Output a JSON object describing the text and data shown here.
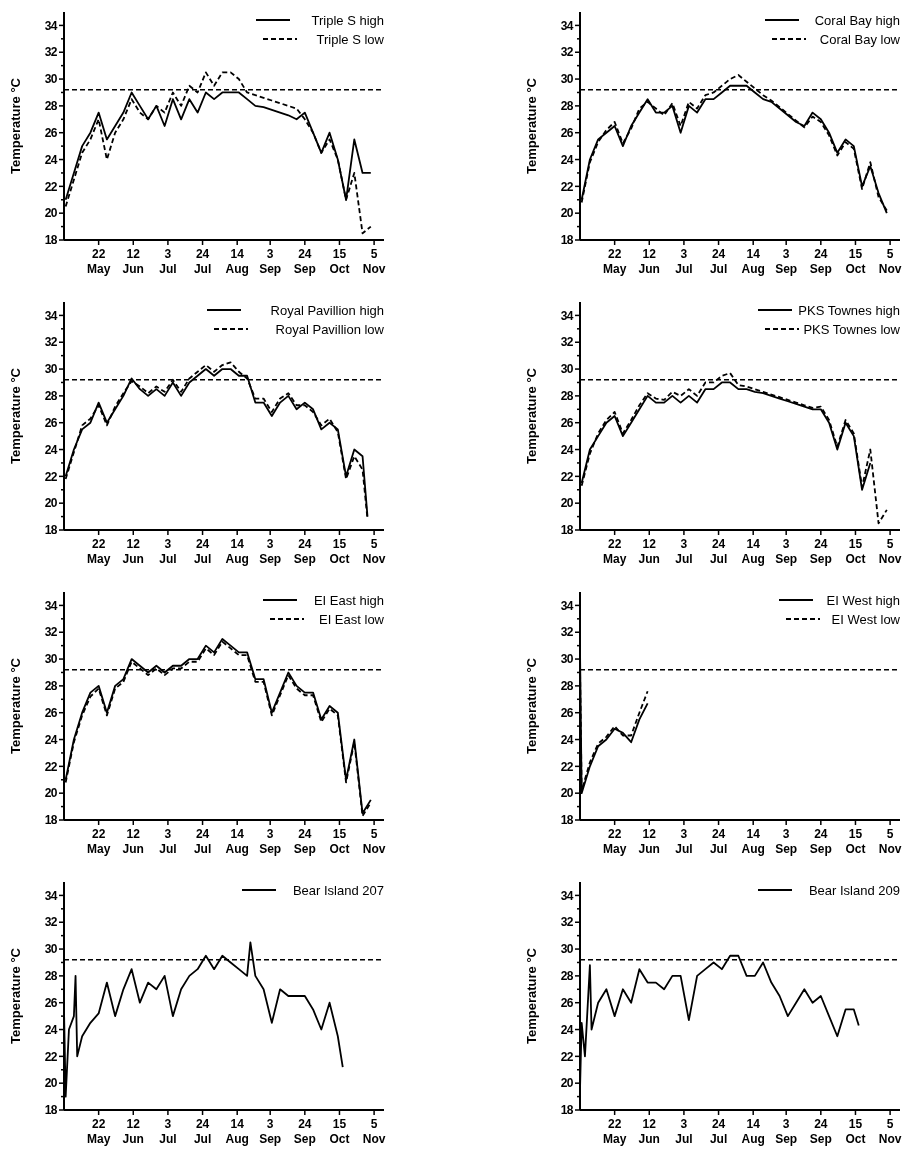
{
  "chart_data": [
    {
      "type": "line",
      "ylabel": "Temperature °C",
      "legend": "top right",
      "xlim": [
        "--05-01",
        "--11-11"
      ],
      "ylim": [
        18,
        35
      ],
      "xticks": [
        {
          "value": "--05-22",
          "label": "22 May"
        },
        {
          "value": "--06-12",
          "label": "12 Jun"
        },
        {
          "value": "--07-03",
          "label": "3 Jul"
        },
        {
          "value": "--07-24",
          "label": "24 Jul"
        },
        {
          "value": "--08-14",
          "label": "14 Aug"
        },
        {
          "value": "--09-03",
          "label": "3 Sep"
        },
        {
          "value": "--09-24",
          "label": "24 Sep"
        },
        {
          "value": "--10-15",
          "label": "15 Oct"
        },
        {
          "value": "--11-05",
          "label": "5 Nov"
        }
      ],
      "yticks": [
        18,
        {
          "value": 19,
          "label": null
        },
        20,
        {
          "value": 21,
          "label": null
        },
        22,
        {
          "value": 23,
          "label": null
        },
        24,
        {
          "value": 25,
          "label": null
        },
        26,
        {
          "value": 27,
          "label": null
        },
        28,
        {
          "value": 29,
          "label": null
        },
        30,
        {
          "value": 31,
          "label": null
        },
        32,
        {
          "value": 33,
          "label": null
        },
        34
      ],
      "ref_lines": [
        {
          "axis": "y",
          "value": 29.2,
          "line_style": "dashed"
        }
      ],
      "x": [
        "--05-02",
        "--05-07",
        "--05-12",
        "--05-17",
        "--05-22",
        "--05-27",
        "--06-01",
        "--06-06",
        "--06-11",
        "--06-16",
        "--06-21",
        "--06-26",
        "--07-01",
        "--07-06",
        "--07-11",
        "--07-16",
        "--07-21",
        "--07-26",
        "--07-31",
        "--08-05",
        "--08-10",
        "--08-15",
        "--08-20",
        "--08-25",
        "--08-30",
        "--09-04",
        "--09-09",
        "--09-14",
        "--09-19",
        "--09-24",
        "--09-29",
        "--10-04",
        "--10-09",
        "--10-14",
        "--10-19",
        "--10-24",
        "--10-29",
        "--11-03"
      ],
      "series": [
        {
          "name": "Triple S high",
          "color": "#000000",
          "line_style": "solid",
          "values": [
            21,
            23,
            25,
            26,
            27.5,
            25.5,
            26.5,
            27.5,
            29,
            28,
            27,
            28,
            26.5,
            28.5,
            27,
            28.5,
            27.5,
            29,
            28.5,
            29,
            29,
            29,
            28.5,
            28,
            27.9,
            27.7,
            27.5,
            27.3,
            27,
            27.5,
            26,
            24.5,
            26,
            24,
            21,
            25.5,
            23,
            23
          ]
        },
        {
          "name": "Triple S low",
          "color": "#000000",
          "line_style": "dashed",
          "values": [
            20.5,
            22.5,
            24.5,
            25.5,
            27,
            24,
            26,
            27,
            28.5,
            27.5,
            27,
            28,
            27.5,
            29,
            28,
            29.5,
            29,
            30.5,
            29.5,
            30.5,
            30.5,
            30,
            29,
            28.8,
            28.6,
            28.4,
            28.2,
            28,
            27.8,
            27,
            26,
            24.5,
            25.5,
            24,
            21,
            23,
            18.5,
            19
          ]
        }
      ]
    },
    {
      "type": "line",
      "ylabel": "Temperature °C",
      "legend": "top right",
      "xlim": [
        "--05-01",
        "--11-11"
      ],
      "ylim": [
        18,
        35
      ],
      "xticks": [
        {
          "value": "--05-22",
          "label": "22 May"
        },
        {
          "value": "--06-12",
          "label": "12 Jun"
        },
        {
          "value": "--07-03",
          "label": "3 Jul"
        },
        {
          "value": "--07-24",
          "label": "24 Jul"
        },
        {
          "value": "--08-14",
          "label": "14 Aug"
        },
        {
          "value": "--09-03",
          "label": "3 Sep"
        },
        {
          "value": "--09-24",
          "label": "24 Sep"
        },
        {
          "value": "--10-15",
          "label": "15 Oct"
        },
        {
          "value": "--11-05",
          "label": "5 Nov"
        }
      ],
      "yticks": [
        18,
        {
          "value": 19,
          "label": null
        },
        20,
        {
          "value": 21,
          "label": null
        },
        22,
        {
          "value": 23,
          "label": null
        },
        24,
        {
          "value": 25,
          "label": null
        },
        26,
        {
          "value": 27,
          "label": null
        },
        28,
        {
          "value": 29,
          "label": null
        },
        30,
        {
          "value": 31,
          "label": null
        },
        32,
        {
          "value": 33,
          "label": null
        },
        34
      ],
      "ref_lines": [
        {
          "axis": "y",
          "value": 29.2,
          "line_style": "dashed"
        }
      ],
      "x": [
        "--05-02",
        "--05-07",
        "--05-12",
        "--05-17",
        "--05-22",
        "--05-27",
        "--06-01",
        "--06-06",
        "--06-11",
        "--06-16",
        "--06-21",
        "--06-26",
        "--07-01",
        "--07-06",
        "--07-11",
        "--07-16",
        "--07-21",
        "--07-26",
        "--07-31",
        "--08-05",
        "--08-10",
        "--08-15",
        "--08-20",
        "--08-25",
        "--08-30",
        "--09-04",
        "--09-09",
        "--09-14",
        "--09-19",
        "--09-24",
        "--09-29",
        "--10-04",
        "--10-09",
        "--10-14",
        "--10-19",
        "--10-24",
        "--10-29",
        "--11-03"
      ],
      "series": [
        {
          "name": "Coral Bay high",
          "color": "#000000",
          "line_style": "solid",
          "values": [
            21,
            24,
            25.5,
            26,
            26.5,
            25,
            26.5,
            27.5,
            28.5,
            27.5,
            27.5,
            28,
            26,
            28,
            27.5,
            28.5,
            28.5,
            29,
            29.5,
            29.5,
            29.5,
            29,
            28.5,
            28.3,
            27.8,
            27.3,
            26.8,
            26.5,
            27.5,
            27,
            26,
            24.5,
            25.5,
            25,
            22,
            23.5,
            21.5,
            20
          ]
        },
        {
          "name": "Coral Bay low",
          "color": "#000000",
          "line_style": "dashed",
          "values": [
            20.8,
            23.8,
            25.3,
            26.2,
            26.8,
            25.2,
            26.3,
            27.8,
            28.3,
            27.8,
            27.3,
            28.2,
            26.5,
            28.3,
            27.8,
            28.8,
            29,
            29.5,
            30,
            30.3,
            29.8,
            29.3,
            28.8,
            28.4,
            27.9,
            27.4,
            26.9,
            26.4,
            27.2,
            26.8,
            25.8,
            24.3,
            25.3,
            24.8,
            21.8,
            23.8,
            21.2,
            20.2
          ]
        }
      ]
    },
    {
      "type": "line",
      "ylabel": "Temperature °C",
      "legend": "top right",
      "xlim": [
        "--05-01",
        "--11-11"
      ],
      "ylim": [
        18,
        35
      ],
      "xticks": [
        {
          "value": "--05-22",
          "label": "22 May"
        },
        {
          "value": "--06-12",
          "label": "12 Jun"
        },
        {
          "value": "--07-03",
          "label": "3 Jul"
        },
        {
          "value": "--07-24",
          "label": "24 Jul"
        },
        {
          "value": "--08-14",
          "label": "14 Aug"
        },
        {
          "value": "--09-03",
          "label": "3 Sep"
        },
        {
          "value": "--09-24",
          "label": "24 Sep"
        },
        {
          "value": "--10-15",
          "label": "15 Oct"
        },
        {
          "value": "--11-05",
          "label": "5 Nov"
        }
      ],
      "yticks": [
        18,
        {
          "value": 19,
          "label": null
        },
        20,
        {
          "value": 21,
          "label": null
        },
        22,
        {
          "value": 23,
          "label": null
        },
        24,
        {
          "value": 25,
          "label": null
        },
        26,
        {
          "value": 27,
          "label": null
        },
        28,
        {
          "value": 29,
          "label": null
        },
        30,
        {
          "value": 31,
          "label": null
        },
        32,
        {
          "value": 33,
          "label": null
        },
        34
      ],
      "ref_lines": [
        {
          "axis": "y",
          "value": 29.2,
          "line_style": "dashed"
        }
      ],
      "x": [
        "--05-02",
        "--05-07",
        "--05-12",
        "--05-17",
        "--05-22",
        "--05-27",
        "--06-01",
        "--06-06",
        "--06-11",
        "--06-16",
        "--06-21",
        "--06-26",
        "--07-01",
        "--07-06",
        "--07-11",
        "--07-16",
        "--07-21",
        "--07-26",
        "--07-31",
        "--08-05",
        "--08-10",
        "--08-15",
        "--08-20",
        "--08-25",
        "--08-30",
        "--09-04",
        "--09-09",
        "--09-14",
        "--09-19",
        "--09-24",
        "--09-29",
        "--10-04",
        "--10-09",
        "--10-14",
        "--10-19",
        "--10-24",
        "--10-29",
        "--11-01"
      ],
      "series": [
        {
          "name": "Royal Pavillion high",
          "color": "#000000",
          "line_style": "solid",
          "values": [
            22,
            24,
            25.5,
            26,
            27.5,
            26,
            27,
            28,
            29.3,
            28.5,
            28,
            28.5,
            28,
            29,
            28,
            29,
            29.5,
            30,
            29.5,
            30,
            30,
            29.5,
            29.5,
            27.5,
            27.5,
            26.5,
            27.5,
            28,
            27,
            27.5,
            27,
            25.5,
            26,
            25.5,
            22,
            24,
            23.5,
            19
          ]
        },
        {
          "name": "Royal Pavillion low",
          "color": "#000000",
          "line_style": "dashed",
          "values": [
            21.8,
            23.8,
            25.8,
            26.3,
            27.3,
            25.8,
            27.2,
            28.2,
            29.1,
            28.7,
            28.2,
            28.7,
            28.3,
            29.2,
            28.3,
            29.3,
            29.8,
            30.3,
            29.8,
            30.3,
            30.5,
            29.8,
            29.3,
            27.8,
            27.8,
            26.8,
            27.8,
            28.2,
            27.3,
            27.3,
            26.8,
            25.8,
            26.3,
            25.3,
            21.8,
            23.5,
            22.5,
            18.8
          ]
        }
      ]
    },
    {
      "type": "line",
      "ylabel": "Temperature °C",
      "legend": "top right",
      "xlim": [
        "--05-01",
        "--11-11"
      ],
      "ylim": [
        18,
        35
      ],
      "xticks": [
        {
          "value": "--05-22",
          "label": "22 May"
        },
        {
          "value": "--06-12",
          "label": "12 Jun"
        },
        {
          "value": "--07-03",
          "label": "3 Jul"
        },
        {
          "value": "--07-24",
          "label": "24 Jul"
        },
        {
          "value": "--08-14",
          "label": "14 Aug"
        },
        {
          "value": "--09-03",
          "label": "3 Sep"
        },
        {
          "value": "--09-24",
          "label": "24 Sep"
        },
        {
          "value": "--10-15",
          "label": "15 Oct"
        },
        {
          "value": "--11-05",
          "label": "5 Nov"
        }
      ],
      "yticks": [
        18,
        {
          "value": 19,
          "label": null
        },
        20,
        {
          "value": 21,
          "label": null
        },
        22,
        {
          "value": 23,
          "label": null
        },
        24,
        {
          "value": 25,
          "label": null
        },
        26,
        {
          "value": 27,
          "label": null
        },
        28,
        {
          "value": 29,
          "label": null
        },
        30,
        {
          "value": 31,
          "label": null
        },
        32,
        {
          "value": 33,
          "label": null
        },
        34
      ],
      "ref_lines": [
        {
          "axis": "y",
          "value": 29.2,
          "line_style": "dashed"
        }
      ],
      "x": [
        "--05-02",
        "--05-07",
        "--05-12",
        "--05-17",
        "--05-22",
        "--05-27",
        "--06-01",
        "--06-06",
        "--06-11",
        "--06-16",
        "--06-21",
        "--06-26",
        "--07-01",
        "--07-06",
        "--07-11",
        "--07-16",
        "--07-21",
        "--07-26",
        "--07-31",
        "--08-05",
        "--08-10",
        "--08-15",
        "--08-20",
        "--08-25",
        "--08-30",
        "--09-04",
        "--09-09",
        "--09-14",
        "--09-19",
        "--09-24",
        "--09-29",
        "--10-04",
        "--10-09",
        "--10-14",
        "--10-19",
        "--10-24",
        "--10-29",
        "--11-03"
      ],
      "series": [
        {
          "name": "PKS Townes high",
          "color": "#000000",
          "line_style": "solid",
          "values": [
            21.5,
            24,
            25,
            26,
            26.5,
            25,
            26,
            27,
            28,
            27.5,
            27.5,
            28,
            27.5,
            28,
            27.5,
            28.5,
            28.5,
            29,
            29,
            28.5,
            28.5,
            28.3,
            28.2,
            28,
            27.8,
            27.6,
            27.4,
            27.2,
            27,
            27,
            26,
            24,
            26,
            25,
            21,
            23,
            null,
            null
          ]
        },
        {
          "name": "PKS Townes low",
          "color": "#000000",
          "line_style": "dashed",
          "values": [
            21.3,
            23.7,
            25.2,
            26.2,
            26.8,
            25.2,
            26.2,
            27.3,
            28.2,
            27.8,
            27.7,
            28.3,
            28,
            28.5,
            28,
            29,
            29,
            29.5,
            29.7,
            28.8,
            28.7,
            28.5,
            28.3,
            28.1,
            27.9,
            27.7,
            27.5,
            27.3,
            27.1,
            27.2,
            26.2,
            24.2,
            26.2,
            25.2,
            21.2,
            24,
            18.5,
            19.5
          ]
        }
      ]
    },
    {
      "type": "line",
      "ylabel": "Temperature °C",
      "legend": "top right",
      "xlim": [
        "--05-01",
        "--11-11"
      ],
      "ylim": [
        18,
        35
      ],
      "xticks": [
        {
          "value": "--05-22",
          "label": "22 May"
        },
        {
          "value": "--06-12",
          "label": "12 Jun"
        },
        {
          "value": "--07-03",
          "label": "3 Jul"
        },
        {
          "value": "--07-24",
          "label": "24 Jul"
        },
        {
          "value": "--08-14",
          "label": "14 Aug"
        },
        {
          "value": "--09-03",
          "label": "3 Sep"
        },
        {
          "value": "--09-24",
          "label": "24 Sep"
        },
        {
          "value": "--10-15",
          "label": "15 Oct"
        },
        {
          "value": "--11-05",
          "label": "5 Nov"
        }
      ],
      "yticks": [
        18,
        {
          "value": 19,
          "label": null
        },
        20,
        {
          "value": 21,
          "label": null
        },
        22,
        {
          "value": 23,
          "label": null
        },
        24,
        {
          "value": 25,
          "label": null
        },
        26,
        {
          "value": 27,
          "label": null
        },
        28,
        {
          "value": 29,
          "label": null
        },
        30,
        {
          "value": 31,
          "label": null
        },
        32,
        {
          "value": 33,
          "label": null
        },
        34
      ],
      "ref_lines": [
        {
          "axis": "y",
          "value": 29.2,
          "line_style": "dashed"
        }
      ],
      "x": [
        "--05-02",
        "--05-07",
        "--05-12",
        "--05-17",
        "--05-22",
        "--05-27",
        "--06-01",
        "--06-06",
        "--06-11",
        "--06-16",
        "--06-21",
        "--06-26",
        "--07-01",
        "--07-06",
        "--07-11",
        "--07-16",
        "--07-21",
        "--07-26",
        "--07-31",
        "--08-05",
        "--08-10",
        "--08-15",
        "--08-20",
        "--08-25",
        "--08-30",
        "--09-04",
        "--09-09",
        "--09-14",
        "--09-19",
        "--09-24",
        "--09-29",
        "--10-04",
        "--10-09",
        "--10-14",
        "--10-19",
        "--10-24",
        "--10-29",
        "--11-03"
      ],
      "series": [
        {
          "name": "EI East high",
          "color": "#000000",
          "line_style": "solid",
          "values": [
            21,
            24,
            26,
            27.5,
            28,
            26,
            28,
            28.5,
            30,
            29.5,
            29,
            29.5,
            29,
            29.5,
            29.5,
            30,
            30,
            31,
            30.5,
            31.5,
            31,
            30.5,
            30.5,
            28.5,
            28.5,
            26,
            27.5,
            29,
            28,
            27.5,
            27.5,
            25.5,
            26.5,
            26,
            21,
            24,
            18.5,
            19.5
          ]
        },
        {
          "name": "EI East low",
          "color": "#000000",
          "line_style": "dashed",
          "values": [
            20.8,
            23.8,
            25.8,
            27.2,
            27.8,
            25.8,
            27.8,
            28.3,
            29.8,
            29.3,
            28.8,
            29.3,
            28.8,
            29.3,
            29.3,
            29.8,
            29.8,
            30.8,
            30.3,
            31.3,
            30.8,
            30.3,
            30.3,
            28.3,
            28.3,
            25.8,
            27.3,
            28.8,
            27.8,
            27.3,
            27.3,
            25.3,
            26.3,
            25.8,
            20.8,
            23.8,
            18.3,
            19.3
          ]
        }
      ]
    },
    {
      "type": "line",
      "ylabel": "Temperature °C",
      "legend": "top right",
      "xlim": [
        "--05-01",
        "--11-11"
      ],
      "ylim": [
        18,
        35
      ],
      "xticks": [
        {
          "value": "--05-22",
          "label": "22 May"
        },
        {
          "value": "--06-12",
          "label": "12 Jun"
        },
        {
          "value": "--07-03",
          "label": "3 Jul"
        },
        {
          "value": "--07-24",
          "label": "24 Jul"
        },
        {
          "value": "--08-14",
          "label": "14 Aug"
        },
        {
          "value": "--09-03",
          "label": "3 Sep"
        },
        {
          "value": "--09-24",
          "label": "24 Sep"
        },
        {
          "value": "--10-15",
          "label": "15 Oct"
        },
        {
          "value": "--11-05",
          "label": "5 Nov"
        }
      ],
      "yticks": [
        18,
        {
          "value": 19,
          "label": null
        },
        20,
        {
          "value": 21,
          "label": null
        },
        22,
        {
          "value": 23,
          "label": null
        },
        24,
        {
          "value": 25,
          "label": null
        },
        26,
        {
          "value": 27,
          "label": null
        },
        28,
        {
          "value": 29,
          "label": null
        },
        30,
        {
          "value": 31,
          "label": null
        },
        32,
        {
          "value": 33,
          "label": null
        },
        34
      ],
      "ref_lines": [
        {
          "axis": "y",
          "value": 29.2,
          "line_style": "dashed"
        }
      ],
      "x": [
        "--05-01",
        "--05-02",
        "--05-07",
        "--05-12",
        "--05-17",
        "--05-22",
        "--05-27",
        "--06-01",
        "--06-06",
        "--06-11"
      ],
      "series": [
        {
          "name": "EI West high",
          "color": "#000000",
          "line_style": "solid",
          "values": [
            30.8,
            20,
            22,
            23.5,
            24,
            24.8,
            24.5,
            23.8,
            25.5,
            26.7
          ]
        },
        {
          "name": "EI West low",
          "color": "#000000",
          "line_style": "dashed",
          "values": [
            29.5,
            20.2,
            22.3,
            23.7,
            24.2,
            25,
            24.3,
            24.3,
            26,
            27.6
          ]
        }
      ]
    },
    {
      "type": "line",
      "ylabel": "Temperature °C",
      "legend": "top right",
      "xlim": [
        "--05-01",
        "--11-11"
      ],
      "ylim": [
        18,
        35
      ],
      "xticks": [
        {
          "value": "--05-22",
          "label": "22 May"
        },
        {
          "value": "--06-12",
          "label": "12 Jun"
        },
        {
          "value": "--07-03",
          "label": "3 Jul"
        },
        {
          "value": "--07-24",
          "label": "24 Jul"
        },
        {
          "value": "--08-14",
          "label": "14 Aug"
        },
        {
          "value": "--09-03",
          "label": "3 Sep"
        },
        {
          "value": "--09-24",
          "label": "24 Sep"
        },
        {
          "value": "--10-15",
          "label": "15 Oct"
        },
        {
          "value": "--11-05",
          "label": "5 Nov"
        }
      ],
      "yticks": [
        18,
        {
          "value": 19,
          "label": null
        },
        20,
        {
          "value": 21,
          "label": null
        },
        22,
        {
          "value": 23,
          "label": null
        },
        24,
        {
          "value": 25,
          "label": null
        },
        26,
        {
          "value": 27,
          "label": null
        },
        28,
        {
          "value": 29,
          "label": null
        },
        30,
        {
          "value": 31,
          "label": null
        },
        32,
        {
          "value": 33,
          "label": null
        },
        34
      ],
      "ref_lines": [
        {
          "axis": "y",
          "value": 29.2,
          "line_style": "dashed"
        }
      ],
      "x": [
        "--05-01",
        "--05-02",
        "--05-04",
        "--05-07",
        "--05-08",
        "--05-09",
        "--05-12",
        "--05-17",
        "--05-22",
        "--05-27",
        "--06-01",
        "--06-06",
        "--06-11",
        "--06-16",
        "--06-21",
        "--06-26",
        "--07-01",
        "--07-06",
        "--07-11",
        "--07-16",
        "--07-21",
        "--07-26",
        "--07-31",
        "--08-05",
        "--08-10",
        "--08-15",
        "--08-20",
        "--08-22",
        "--08-25",
        "--08-30",
        "--09-04",
        "--09-09",
        "--09-14",
        "--09-19",
        "--09-24",
        "--09-29",
        "--10-04",
        "--10-09",
        "--10-14",
        "--10-17"
      ],
      "series": [
        {
          "name": "Bear Island 207",
          "color": "#000000",
          "line_style": "solid",
          "values": [
            25.5,
            19,
            24,
            25,
            28,
            22,
            23.5,
            24.5,
            25.2,
            27.5,
            25,
            27,
            28.5,
            26,
            27.5,
            27,
            28,
            25,
            27,
            28,
            28.5,
            29.5,
            28.5,
            29.5,
            29,
            28.5,
            28,
            30.5,
            28,
            27,
            24.5,
            27,
            26.5,
            26.5,
            26.5,
            25.5,
            24,
            26,
            23.5,
            21.2
          ]
        }
      ]
    },
    {
      "type": "line",
      "ylabel": "Temperature °C",
      "legend": "top right",
      "xlim": [
        "--05-01",
        "--11-11"
      ],
      "ylim": [
        18,
        35
      ],
      "xticks": [
        {
          "value": "--05-22",
          "label": "22 May"
        },
        {
          "value": "--06-12",
          "label": "12 Jun"
        },
        {
          "value": "--07-03",
          "label": "3 Jul"
        },
        {
          "value": "--07-24",
          "label": "24 Jul"
        },
        {
          "value": "--08-14",
          "label": "14 Aug"
        },
        {
          "value": "--09-03",
          "label": "3 Sep"
        },
        {
          "value": "--09-24",
          "label": "24 Sep"
        },
        {
          "value": "--10-15",
          "label": "15 Oct"
        },
        {
          "value": "--11-05",
          "label": "5 Nov"
        }
      ],
      "yticks": [
        18,
        {
          "value": 19,
          "label": null
        },
        20,
        {
          "value": 21,
          "label": null
        },
        22,
        {
          "value": 23,
          "label": null
        },
        24,
        {
          "value": 25,
          "label": null
        },
        26,
        {
          "value": 27,
          "label": null
        },
        28,
        {
          "value": 29,
          "label": null
        },
        30,
        {
          "value": 31,
          "label": null
        },
        32,
        {
          "value": 33,
          "label": null
        },
        34
      ],
      "ref_lines": [
        {
          "axis": "y",
          "value": 29.2,
          "line_style": "dashed"
        }
      ],
      "x": [
        "--05-01",
        "--05-02",
        "--05-04",
        "--05-07",
        "--05-08",
        "--05-12",
        "--05-17",
        "--05-22",
        "--05-27",
        "--06-01",
        "--06-06",
        "--06-11",
        "--06-16",
        "--06-21",
        "--06-26",
        "--07-01",
        "--07-06",
        "--07-11",
        "--07-16",
        "--07-21",
        "--07-26",
        "--07-31",
        "--08-05",
        "--08-10",
        "--08-15",
        "--08-20",
        "--08-25",
        "--08-30",
        "--09-04",
        "--09-09",
        "--09-14",
        "--09-19",
        "--09-24",
        "--09-29",
        "--10-04",
        "--10-09",
        "--10-14",
        "--10-17"
      ],
      "series": [
        {
          "name": "Bear Island 209",
          "color": "#000000",
          "line_style": "solid",
          "values": [
            19.5,
            24.5,
            22,
            28.8,
            24,
            26,
            27,
            25,
            27,
            26,
            28.5,
            27.5,
            27.5,
            27,
            28,
            28,
            24.7,
            28,
            28.5,
            29,
            28.5,
            29.5,
            29.5,
            28,
            28,
            29,
            27.5,
            26.5,
            25,
            26,
            27,
            26,
            26.5,
            25,
            23.5,
            25.5,
            25.5,
            24.3
          ]
        }
      ]
    }
  ]
}
